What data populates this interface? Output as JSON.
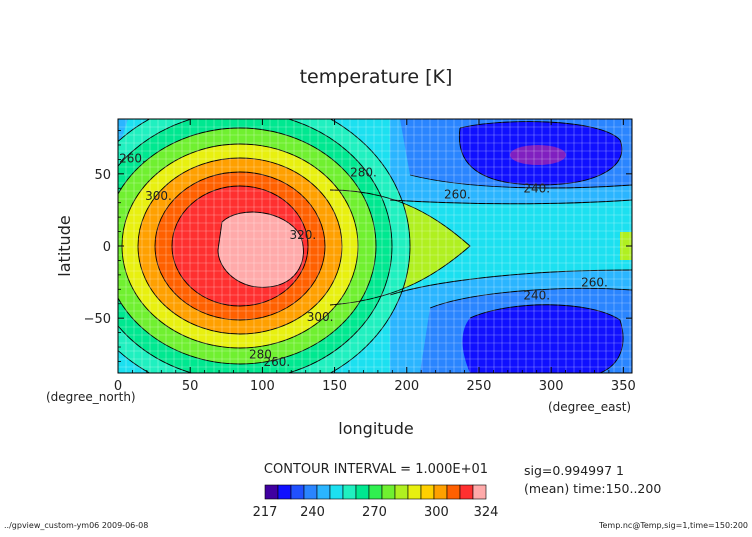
{
  "chart_data": {
    "type": "contour",
    "title": "temperature [K]",
    "xlabel": "longitude",
    "ylabel": "latitude",
    "x_units": "(degree_east)",
    "y_units": "(degree_north)",
    "xlim": [
      0,
      356
    ],
    "ylim": [
      -88,
      88
    ],
    "x_ticks": [
      0,
      50,
      100,
      150,
      200,
      250,
      300,
      350
    ],
    "y_ticks": [
      -50,
      0,
      50
    ],
    "contour_interval_text": "CONTOUR INTERVAL = 1.000E+01",
    "contour_labels": [
      {
        "text": "260.",
        "lon": 10,
        "lat": 58
      },
      {
        "text": "300.",
        "lon": 28,
        "lat": 32
      },
      {
        "text": "280.",
        "lon": 170,
        "lat": 48
      },
      {
        "text": "260.",
        "lon": 235,
        "lat": 33
      },
      {
        "text": "240.",
        "lon": 290,
        "lat": 37
      },
      {
        "text": "320.",
        "lon": 128,
        "lat": 5
      },
      {
        "text": "300.",
        "lon": 140,
        "lat": -52
      },
      {
        "text": "280.",
        "lon": 100,
        "lat": -78
      },
      {
        "text": "260.",
        "lon": 110,
        "lat": -83
      },
      {
        "text": "260.",
        "lon": 330,
        "lat": -28
      },
      {
        "text": "240.",
        "lon": 290,
        "lat": -37
      }
    ],
    "colorbar": {
      "tick_labels": [
        "217",
        "240",
        "270",
        "300",
        "324"
      ],
      "colors": [
        "#4000a0",
        "#1010ff",
        "#2050ff",
        "#2a85ff",
        "#2bb5ff",
        "#1ce0f0",
        "#20f0c0",
        "#00e890",
        "#30f050",
        "#70f030",
        "#b0f020",
        "#e8f010",
        "#ffd000",
        "#ffa000",
        "#ff6000",
        "#ff3030",
        "#ffaaaa"
      ]
    },
    "info_line1": "sig=0.994997 1",
    "info_line2": "(mean) time:150..200",
    "footer_left": "../gpview_custom-ym06  2009-06-08",
    "footer_right": "Temp.nc@Temp,sig=1,time=150:200",
    "grid": true
  }
}
